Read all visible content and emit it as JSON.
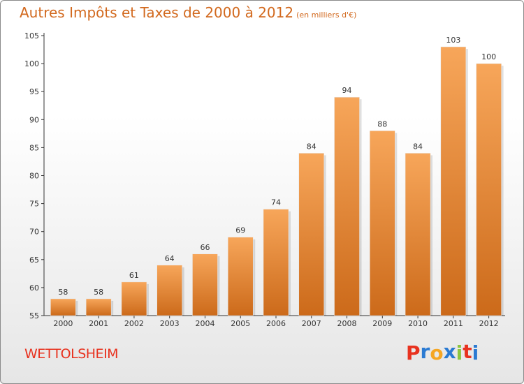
{
  "title": "Autres Impôts et Taxes de 2000 à 2012",
  "subtitle": "(en milliers d'€)",
  "commune": "WETTOLSHEIM",
  "logo": {
    "letters": [
      "P",
      "r",
      "o",
      "x",
      "i",
      "t",
      "i"
    ],
    "colors": [
      "#e8321f",
      "#2a7ad2",
      "#f5a623",
      "#2a7ad2",
      "#8cc63f",
      "#e8321f",
      "#2a7ad2"
    ]
  },
  "colors": {
    "bar_top": "#f7a65a",
    "bar_bottom": "#cc6a1a",
    "axis": "#333333",
    "grid": "#d0d0d0"
  },
  "chart_data": {
    "type": "bar",
    "categories": [
      "2000",
      "2001",
      "2002",
      "2003",
      "2004",
      "2005",
      "2006",
      "2007",
      "2008",
      "2009",
      "2010",
      "2011",
      "2012"
    ],
    "values": [
      58,
      58,
      61,
      64,
      66,
      69,
      74,
      84,
      94,
      88,
      84,
      103,
      100
    ],
    "ylim": [
      55,
      105
    ],
    "yticks": [
      55,
      60,
      65,
      70,
      75,
      80,
      85,
      90,
      95,
      100,
      105
    ],
    "grid": false,
    "data_labels": true
  }
}
